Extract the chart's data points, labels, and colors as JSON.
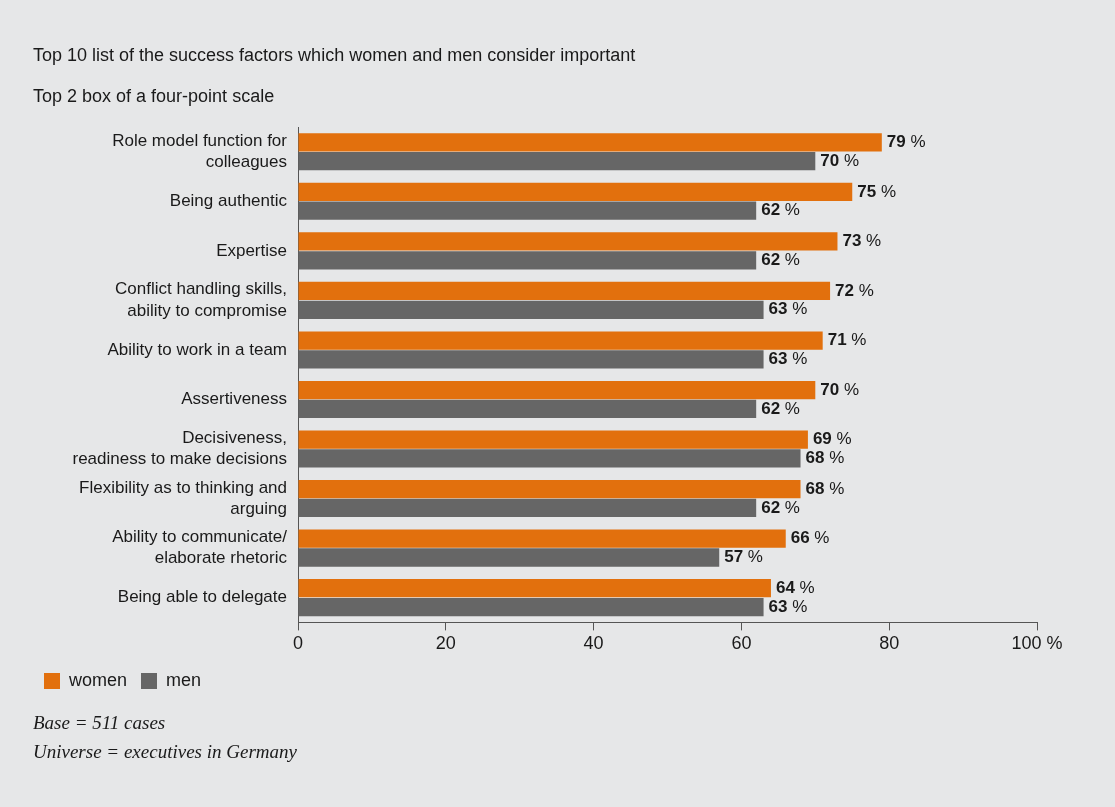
{
  "chart_data": {
    "type": "bar",
    "orientation": "horizontal",
    "title": "Top 10 list of the success factors which women and men consider important",
    "subtitle": "Top 2 box of a four-point scale",
    "categories": [
      "Role model function for colleagues",
      "Being authentic",
      "Expertise",
      "Conflict handling skills, ability to compromise",
      "Ability to work in a team",
      "Assertiveness",
      "Decisiveness, readiness to make decisions",
      "Flexibility as to thinking and arguing",
      "Ability to communicate/ elaborate rhetoric",
      "Being able to delegate"
    ],
    "series": [
      {
        "name": "women",
        "color": "#e2700d",
        "values": [
          79,
          75,
          73,
          72,
          71,
          70,
          69,
          68,
          66,
          64
        ],
        "value_labels": [
          "79 %",
          "75 %",
          "73 %",
          "72 %",
          "71 %",
          "70 %",
          "69 %",
          "68 %",
          "66 %",
          "64 %"
        ]
      },
      {
        "name": "men",
        "color": "#666666",
        "values": [
          70,
          62,
          62,
          63,
          63,
          62,
          68,
          62,
          57,
          63
        ],
        "value_labels": [
          "70 %",
          "62 %",
          "62 %",
          "63 %",
          "63 %",
          "62 %",
          "68 %",
          "62 %",
          "57 %",
          "63 %"
        ]
      }
    ],
    "xlim": [
      0,
      100
    ],
    "xticks": [
      0,
      20,
      40,
      60,
      80,
      {
        "value": 100,
        "label": "100 %"
      }
    ],
    "grid": false,
    "legend": "bottom left",
    "annotations": [
      "Base = 511 cases",
      "Universe = executives in Germany"
    ]
  }
}
